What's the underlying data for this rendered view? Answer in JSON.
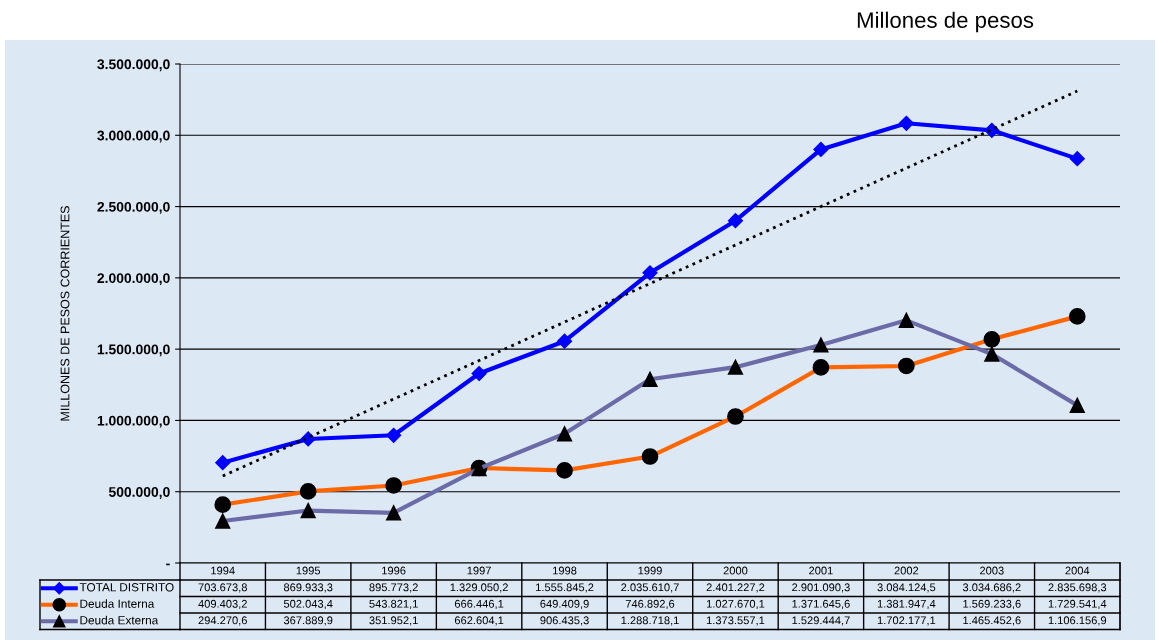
{
  "chart_data": {
    "type": "line",
    "title": "Millones de pesos",
    "ylabel": "MILLONES DE PESOS CORRIENTES",
    "categories": [
      "1994",
      "1995",
      "1996",
      "1997",
      "1998",
      "1999",
      "2000",
      "2001",
      "2002",
      "2003",
      "2004"
    ],
    "series": [
      {
        "name": "TOTAL DISTRITO",
        "color": "#0000ff",
        "marker": "diamond",
        "values": [
          703673.8,
          869933.3,
          895773.2,
          1329050.2,
          1555845.2,
          2035610.7,
          2401227.2,
          2901090.3,
          3084124.5,
          3034686.2,
          2835698.3
        ],
        "value_labels": [
          "703.673,8",
          "869.933,3",
          "895.773,2",
          "1.329.050,2",
          "1.555.845,2",
          "2.035.610,7",
          "2.401.227,2",
          "2.901.090,3",
          "3.084.124,5",
          "3.034.686,2",
          "2.835.698,3"
        ]
      },
      {
        "name": "Deuda Interna",
        "color": "#ff6600",
        "marker": "circle",
        "values": [
          409403.2,
          502043.4,
          543821.1,
          666446.1,
          649409.9,
          746892.6,
          1027670.1,
          1371645.6,
          1381947.4,
          1569233.6,
          1729541.4
        ],
        "value_labels": [
          "409.403,2",
          "502.043,4",
          "543.821,1",
          "666.446,1",
          "649.409,9",
          "746.892,6",
          "1.027.670,1",
          "1.371.645,6",
          "1.381.947,4",
          "1.569.233,6",
          "1.729.541,4"
        ]
      },
      {
        "name": "Deuda Externa",
        "color": "#6b6ba8",
        "marker": "triangle",
        "values": [
          294270.6,
          367889.9,
          351952.1,
          662604.1,
          906435.3,
          1288718.1,
          1373557.1,
          1529444.7,
          1702177.1,
          1465452.6,
          1106156.9
        ],
        "value_labels": [
          "294.270,6",
          "367.889,9",
          "351.952,1",
          "662.604,1",
          "906.435,3",
          "1.288.718,1",
          "1.373.557,1",
          "1.529.444,7",
          "1.702.177,1",
          "1.465.452,6",
          "1.106.156,9"
        ]
      },
      {
        "type": "line",
        "color": "#000000",
        "marker": "none",
        "line_style": "dotted",
        "values": [
          610000,
          880000,
          1150000,
          1420000,
          1690000,
          1960000,
          2230000,
          2500000,
          2770000,
          3040000,
          3310000
        ]
      }
    ],
    "ylim": [
      0,
      3500000
    ],
    "yticks": [
      {
        "value": 0,
        "label": "-"
      },
      {
        "value": 500000,
        "label": "500.000,0"
      },
      {
        "value": 1000000,
        "label": "1.000.000,0"
      },
      {
        "value": 1500000,
        "label": "1.500.000,0"
      },
      {
        "value": 2000000,
        "label": "2.000.000,0"
      },
      {
        "value": 2500000,
        "label": "2.500.000,0"
      },
      {
        "value": 3000000,
        "label": "3.000.000,0"
      },
      {
        "value": 3500000,
        "label": "3.500.000,0"
      }
    ],
    "grid": "y",
    "legend": "bottom",
    "line_style": "solid"
  }
}
